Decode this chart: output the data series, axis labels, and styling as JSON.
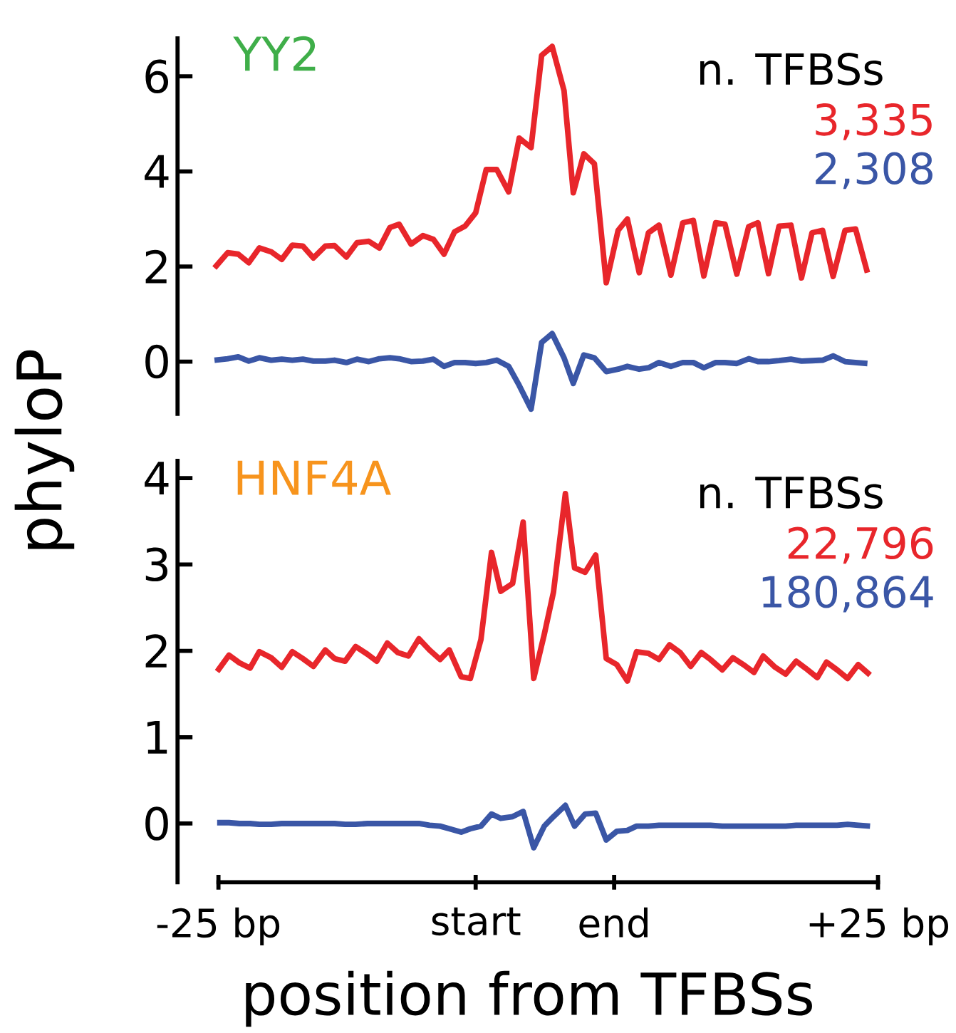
{
  "chart_data": [
    {
      "type": "line",
      "title": "YY2",
      "legend_title": "n. TFBSs",
      "ylabel": "phyloP",
      "legend": "top right",
      "marker": "none",
      "tick_labels": "y",
      "x": [
        -25.3,
        -24.3,
        -23.5,
        -22.7,
        -21.9,
        -21.0,
        -20.2,
        -19.4,
        -18.6,
        -17.8,
        -16.9,
        -16.2,
        -15.3,
        -14.5,
        -13.6,
        -12.8,
        -12.0,
        -11.3,
        -10.4,
        -9.5,
        -8.7,
        -7.9,
        -7.1,
        -6.3,
        -5.5,
        -4.7,
        -3.9,
        -3.0,
        -2.2,
        -1.3,
        -0.5,
        0.3,
        1.2,
        1.9,
        2.7,
        3.5,
        4.4,
        5.3,
        6.0,
        6.9,
        7.6,
        8.4,
        9.3,
        10.2,
        11.0,
        11.8,
        12.7,
        13.4,
        14.3,
        15.2,
        15.9,
        16.7,
        17.5,
        18.4,
        19.2,
        20.0,
        20.8,
        21.6,
        22.5,
        23.3,
        24.2
      ],
      "series": [
        {
          "name": "3,335",
          "color": "#e8262b",
          "values": [
            1.97,
            2.29,
            2.26,
            2.08,
            2.39,
            2.31,
            2.15,
            2.45,
            2.43,
            2.18,
            2.43,
            2.44,
            2.2,
            2.5,
            2.53,
            2.39,
            2.82,
            2.89,
            2.47,
            2.65,
            2.57,
            2.26,
            2.73,
            2.85,
            3.13,
            4.04,
            4.04,
            3.57,
            4.7,
            4.5,
            6.44,
            6.63,
            5.7,
            3.55,
            4.37,
            4.16,
            1.66,
            2.76,
            3.0,
            1.87,
            2.71,
            2.87,
            1.82,
            2.92,
            2.97,
            1.8,
            2.92,
            2.89,
            1.84,
            2.84,
            2.92,
            1.85,
            2.85,
            2.87,
            1.76,
            2.71,
            2.76,
            1.79,
            2.76,
            2.79,
            1.87
          ]
        },
        {
          "name": "2,308",
          "color": "#3a56a6",
          "values": [
            0.03,
            0.06,
            0.1,
            0.01,
            0.08,
            0.03,
            0.05,
            0.03,
            0.05,
            0.01,
            0.01,
            0.03,
            -0.02,
            0.05,
            0,
            0.06,
            0.08,
            0.06,
            0,
            0.01,
            0.05,
            -0.1,
            -0.02,
            -0.02,
            -0.04,
            -0.02,
            0.03,
            -0.1,
            -0.5,
            -1.0,
            0.4,
            0.59,
            0.08,
            -0.46,
            0.14,
            0.08,
            -0.21,
            -0.16,
            -0.1,
            -0.16,
            -0.13,
            -0.02,
            -0.1,
            -0.02,
            -0.02,
            -0.13,
            -0.02,
            -0.02,
            -0.04,
            0.06,
            0,
            0,
            0.02,
            0.05,
            0.01,
            0.02,
            0.03,
            0.12,
            0,
            -0.02,
            -0.04
          ]
        }
      ],
      "xlim": [
        -28.1,
        25
      ],
      "ylim": [
        -1.1,
        6.8
      ],
      "yticks": [
        0,
        2,
        4,
        6
      ],
      "xticks": [
        {
          "value": -25,
          "label": null
        },
        {
          "value": -5.5,
          "label": null
        },
        {
          "value": 5,
          "label": null
        },
        {
          "value": 25,
          "label": null
        }
      ]
    },
    {
      "type": "line",
      "title": "HNF4A",
      "legend_title": "n. TFBSs",
      "xlabel": "position from TFBSs",
      "legend": "top right",
      "marker": "none",
      "x": [
        -25.1,
        -24.2,
        -23.4,
        -22.6,
        -21.9,
        -21.0,
        -20.2,
        -19.4,
        -18.6,
        -17.8,
        -16.9,
        -16.2,
        -15.4,
        -14.6,
        -13.7,
        -13.0,
        -12.2,
        -11.4,
        -10.6,
        -9.8,
        -9.0,
        -8.2,
        -7.5,
        -6.6,
        -5.9,
        -5.1,
        -4.3,
        -3.6,
        -2.7,
        -1.9,
        -1.1,
        -0.3,
        0.4,
        1.3,
        2.0,
        2.8,
        3.6,
        4.4,
        5.2,
        6.0,
        6.7,
        7.6,
        8.4,
        9.2,
        10.0,
        10.8,
        11.6,
        12.3,
        13.2,
        14.0,
        14.8,
        15.6,
        16.3,
        17.2,
        18.0,
        18.8,
        19.5,
        20.4,
        21.1,
        21.9,
        22.7,
        23.5,
        24.4
      ],
      "series": [
        {
          "name": "22,796",
          "color": "#e8262b",
          "values": [
            1.76,
            1.95,
            1.86,
            1.8,
            1.99,
            1.92,
            1.81,
            1.99,
            1.91,
            1.82,
            2.01,
            1.91,
            1.88,
            2.05,
            1.96,
            1.88,
            2.09,
            1.98,
            1.94,
            2.14,
            2.01,
            1.9,
            2.01,
            1.7,
            1.68,
            2.13,
            3.14,
            2.69,
            2.78,
            3.49,
            1.68,
            2.19,
            2.68,
            3.82,
            2.96,
            2.91,
            3.11,
            1.91,
            1.84,
            1.65,
            1.99,
            1.97,
            1.9,
            2.07,
            1.98,
            1.82,
            1.98,
            1.9,
            1.78,
            1.92,
            1.84,
            1.75,
            1.94,
            1.81,
            1.73,
            1.88,
            1.8,
            1.69,
            1.87,
            1.78,
            1.68,
            1.84,
            1.72
          ]
        },
        {
          "name": "180,864",
          "color": "#3a56a6",
          "values": [
            0.01,
            0.01,
            0,
            0,
            -0.01,
            -0.01,
            0,
            0,
            0,
            0,
            0,
            0,
            -0.01,
            -0.01,
            0,
            0,
            0,
            0,
            0,
            0,
            -0.02,
            -0.03,
            -0.06,
            -0.1,
            -0.06,
            -0.03,
            0.11,
            0.06,
            0.08,
            0.14,
            -0.28,
            -0.03,
            0.08,
            0.21,
            -0.03,
            0.11,
            0.12,
            -0.19,
            -0.09,
            -0.08,
            -0.03,
            -0.03,
            -0.02,
            -0.02,
            -0.02,
            -0.02,
            -0.02,
            -0.02,
            -0.03,
            -0.03,
            -0.03,
            -0.03,
            -0.03,
            -0.03,
            -0.03,
            -0.02,
            -0.02,
            -0.02,
            -0.02,
            -0.02,
            -0.01,
            -0.02,
            -0.03
          ]
        }
      ],
      "xlim": [
        -28.1,
        25
      ],
      "ylim": [
        -0.68,
        4.2
      ],
      "yticks": [
        0,
        1,
        2,
        3,
        4
      ],
      "xticks": [
        {
          "value": -25,
          "label": "-25 bp"
        },
        {
          "value": -5.5,
          "label": "start"
        },
        {
          "value": 5,
          "label": "end"
        },
        {
          "value": 25,
          "label": "+25 bp"
        }
      ]
    }
  ]
}
